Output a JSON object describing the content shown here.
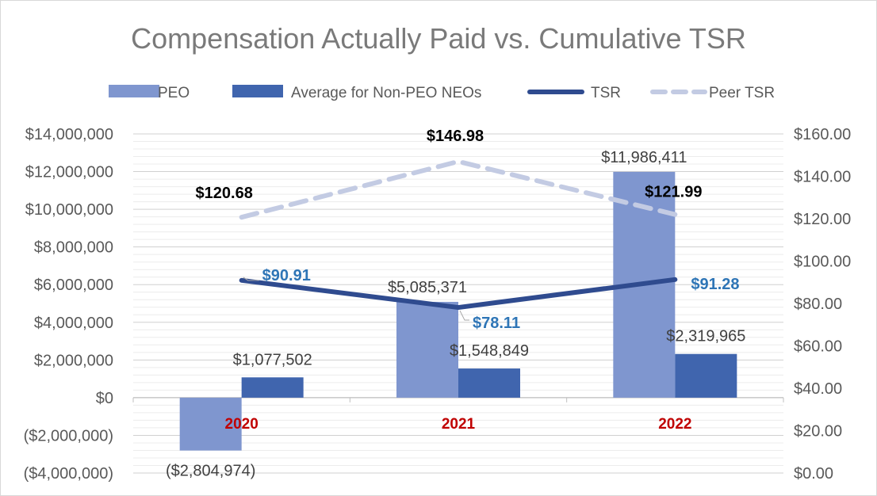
{
  "chart_data": {
    "type": "bar",
    "title": "Compensation Actually Paid vs. Cumulative TSR",
    "categories": [
      "2020",
      "2021",
      "2022"
    ],
    "series": [
      {
        "name": "PEO",
        "kind": "bar",
        "axis": "left",
        "color": "#7f96cf",
        "values": [
          -2804974,
          5085371,
          11986411
        ],
        "labels": [
          "($2,804,974)",
          "$5,085,371",
          "$11,986,411"
        ]
      },
      {
        "name": "Average for Non-PEO NEOs",
        "kind": "bar",
        "axis": "left",
        "color": "#4065ae",
        "values": [
          1077502,
          1548849,
          2319965
        ],
        "labels": [
          "$1,077,502",
          "$1,548,849",
          "$2,319,965"
        ]
      },
      {
        "name": "TSR",
        "kind": "line",
        "axis": "right",
        "color": "#2f4b8f",
        "values": [
          90.91,
          78.11,
          91.28
        ],
        "labels": [
          "$90.91",
          "$78.11",
          "$91.28"
        ]
      },
      {
        "name": "Peer TSR",
        "kind": "dashed-line",
        "axis": "right",
        "color": "#c3cbe3",
        "values": [
          120.68,
          146.98,
          121.99
        ],
        "labels": [
          "$120.68",
          "$146.98",
          "$121.99"
        ]
      }
    ],
    "left_axis": {
      "min": -4000000,
      "max": 14000000,
      "step": 2000000,
      "tick_labels": [
        "($4,000,000)",
        "($2,000,000)",
        "$0",
        "$2,000,000",
        "$4,000,000",
        "$6,000,000",
        "$8,000,000",
        "$10,000,000",
        "$12,000,000",
        "$14,000,000"
      ]
    },
    "right_axis": {
      "min": 0,
      "max": 160,
      "step": 20,
      "tick_labels": [
        "$0.00",
        "$20.00",
        "$40.00",
        "$60.00",
        "$80.00",
        "$100.00",
        "$120.00",
        "$140.00",
        "$160.00"
      ]
    },
    "legend_position": "top",
    "grid": true
  }
}
